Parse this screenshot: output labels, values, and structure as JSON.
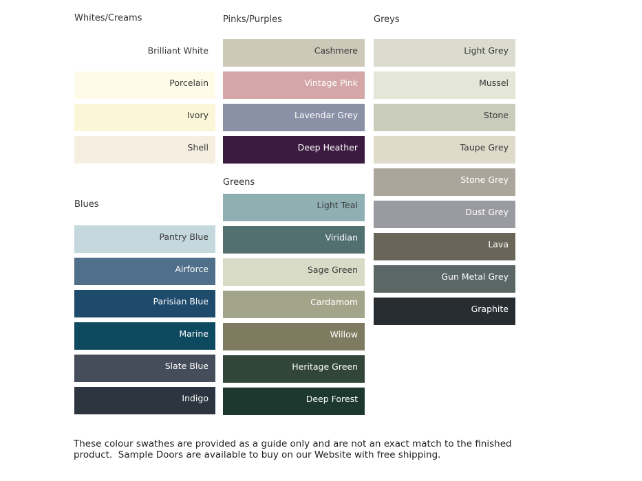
{
  "groups": {
    "whites": {
      "header": "Whites/Creams",
      "items": [
        {
          "label": "Brilliant White",
          "color": "#FFFFFF",
          "text": "dark"
        },
        {
          "label": "Porcelain",
          "color": "#FEFCE8",
          "text": "dark"
        },
        {
          "label": "Ivory",
          "color": "#FBF6D8",
          "text": "dark"
        },
        {
          "label": "Shell",
          "color": "#F6EEE0",
          "text": "dark"
        }
      ]
    },
    "blues": {
      "header": "Blues",
      "items": [
        {
          "label": "Pantry Blue",
          "color": "#C5D8DE",
          "text": "dark"
        },
        {
          "label": "Airforce",
          "color": "#506F8A",
          "text": "light"
        },
        {
          "label": "Parisian Blue",
          "color": "#1E4A6B",
          "text": "light"
        },
        {
          "label": "Marine",
          "color": "#0D495F",
          "text": "light"
        },
        {
          "label": "Slate Blue",
          "color": "#454C5A",
          "text": "light"
        },
        {
          "label": "Indigo",
          "color": "#2C3540",
          "text": "light"
        }
      ]
    },
    "pinks": {
      "header": "Pinks/Purples",
      "items": [
        {
          "label": "Cashmere",
          "color": "#CDC8B8",
          "text": "dark"
        },
        {
          "label": "Vintage Pink",
          "color": "#D4A6A7",
          "text": "light"
        },
        {
          "label": "Lavendar Grey",
          "color": "#8A91A6",
          "text": "light"
        },
        {
          "label": "Deep Heather",
          "color": "#3B1C40",
          "text": "light"
        }
      ]
    },
    "greens": {
      "header": "Greens",
      "items": [
        {
          "label": "Light Teal",
          "color": "#8FAFB2",
          "text": "dark"
        },
        {
          "label": "Viridian",
          "color": "#537071",
          "text": "light"
        },
        {
          "label": "Sage Green",
          "color": "#D8DCC7",
          "text": "dark"
        },
        {
          "label": "Cardamom",
          "color": "#A3A58A",
          "text": "light"
        },
        {
          "label": "Willow",
          "color": "#7F7B60",
          "text": "light"
        },
        {
          "label": "Heritage Green",
          "color": "#324539",
          "text": "light"
        },
        {
          "label": "Deep Forest",
          "color": "#1C382F",
          "text": "light"
        }
      ]
    },
    "greys": {
      "header": "Greys",
      "items": [
        {
          "label": "Light Grey",
          "color": "#DBDCCF",
          "text": "dark"
        },
        {
          "label": "Mussel",
          "color": "#E4E6D7",
          "text": "dark"
        },
        {
          "label": "Stone",
          "color": "#C9CCBA",
          "text": "dark"
        },
        {
          "label": "Taupe Grey",
          "color": "#E0DACB",
          "text": "dark"
        },
        {
          "label": "Stone Grey",
          "color": "#ACA59B",
          "text": "light"
        },
        {
          "label": "Dust Grey",
          "color": "#9A9BA0",
          "text": "light"
        },
        {
          "label": "Lava",
          "color": "#696659",
          "text": "light"
        },
        {
          "label": "Gun Metal Grey",
          "color": "#5A6765",
          "text": "light"
        },
        {
          "label": "Graphite",
          "color": "#282D32",
          "text": "light"
        }
      ]
    }
  },
  "footer": {
    "text": "These colour swathes are provided as a guide only and are not an exact match to the finished product.  Sample Doors are available to buy on our Website with free shipping."
  }
}
